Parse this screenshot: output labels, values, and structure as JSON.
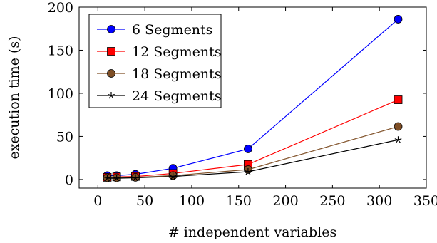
{
  "chart_data": {
    "type": "line",
    "title": "",
    "xlabel": "# independent variables",
    "ylabel": "execution time (s)",
    "xlim": [
      -20,
      350
    ],
    "ylim": [
      -10,
      200
    ],
    "xticks": [
      0,
      50,
      100,
      150,
      200,
      250,
      300,
      350
    ],
    "yticks": [
      0,
      50,
      100,
      150,
      200
    ],
    "grid": false,
    "legend_position": "top-left",
    "series": [
      {
        "name": "6 Segments",
        "color": "#0000ff",
        "marker": "circle",
        "x": [
          10,
          20,
          40,
          80,
          160,
          320
        ],
        "y": [
          4.5,
          4.5,
          6,
          13,
          35.5,
          186
        ]
      },
      {
        "name": "12 Segments",
        "color": "#ff0000",
        "marker": "square",
        "x": [
          10,
          20,
          40,
          80,
          160,
          320
        ],
        "y": [
          2.5,
          3,
          3.5,
          7,
          17.5,
          92.5
        ]
      },
      {
        "name": "18 Segments",
        "color": "#7f4f26",
        "marker": "circle",
        "x": [
          10,
          20,
          40,
          80,
          160,
          320
        ],
        "y": [
          2,
          2,
          2.5,
          4.5,
          11.5,
          61.5
        ]
      },
      {
        "name": "24 Segments",
        "color": "#000000",
        "marker": "star",
        "x": [
          10,
          20,
          40,
          80,
          160,
          320
        ],
        "y": [
          1.5,
          1.5,
          2,
          3.5,
          9,
          46
        ]
      }
    ]
  }
}
